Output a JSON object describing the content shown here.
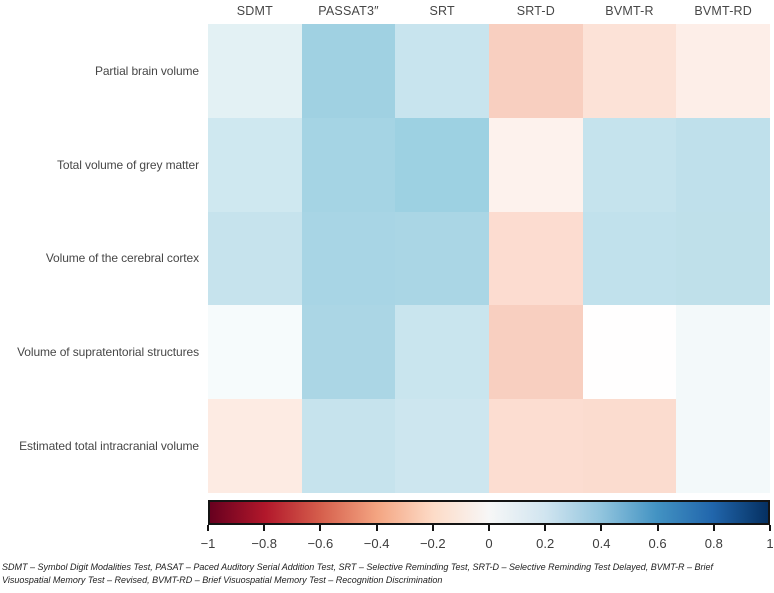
{
  "chart_data": {
    "type": "heatmap",
    "title": "",
    "columns": [
      "SDMT",
      "PASSAT3″",
      "SRT",
      "SRT-D",
      "BVMT-R",
      "BVMT-RD"
    ],
    "rows": [
      "Partial brain volume",
      "Total volume of grey matter",
      "Volume of the cerebral cortex",
      "Volume of supratentorial structures",
      "Estimated total intracranial volume"
    ],
    "values": [
      [
        0.09,
        0.29,
        0.16,
        -0.18,
        -0.1,
        -0.05
      ],
      [
        0.14,
        0.27,
        0.3,
        -0.04,
        0.17,
        0.19
      ],
      [
        0.17,
        0.26,
        0.25,
        -0.12,
        0.18,
        0.19
      ],
      [
        0.03,
        0.25,
        0.16,
        -0.18,
        0.0,
        0.03
      ],
      [
        -0.06,
        0.17,
        0.15,
        -0.11,
        -0.12,
        0.03
      ]
    ],
    "cell_colors": [
      [
        "#e3f1f4",
        "#a0d1e2",
        "#c8e4ee",
        "#f8cfc0",
        "#fce2d7",
        "#fdeee8"
      ],
      [
        "#cfe8f0",
        "#a5d4e4",
        "#9dd1e2",
        "#fdf2ed",
        "#c5e3ed",
        "#bfe0eb"
      ],
      [
        "#c6e3ed",
        "#a8d5e5",
        "#aad6e5",
        "#fcdcd0",
        "#c1e1ec",
        "#bfe0ea"
      ],
      [
        "#f6fbfc",
        "#abd6e5",
        "#c9e5ee",
        "#f8cfc0",
        "#fffefe",
        "#f3f9fa"
      ],
      [
        "#fdebe3",
        "#c6e3ed",
        "#cde6ef",
        "#fcddd1",
        "#fbdccf",
        "#f3f9fa"
      ]
    ],
    "colorbar": {
      "min": -1,
      "max": 1,
      "tick_labels": [
        "−1",
        "−0.8",
        "−0.6",
        "−0.4",
        "−0.2",
        "0",
        "0.2",
        "0.4",
        "0.6",
        "0.8",
        "1"
      ],
      "gradient_stops": [
        "#67001f",
        "#b2182b",
        "#d6604d",
        "#f4a582",
        "#fddbc7",
        "#f7f7f7",
        "#d1e5f0",
        "#92c5de",
        "#4393c3",
        "#2166ac",
        "#053061"
      ],
      "position": "bottom"
    },
    "grid": false,
    "legend_position": "none"
  },
  "footnote": {
    "line1": "SDMT – Symbol Digit Modalities Test, PASAT – Paced Auditory Serial Addition Test, SRT – Selective Reminding Test, SRT-D – Selective Reminding Test Delayed, BVMT-R – Brief",
    "line2": "Visuospatial Memory Test – Revised, BVMT-RD – Brief Visuospatial Memory Test – Recognition Discrimination"
  }
}
